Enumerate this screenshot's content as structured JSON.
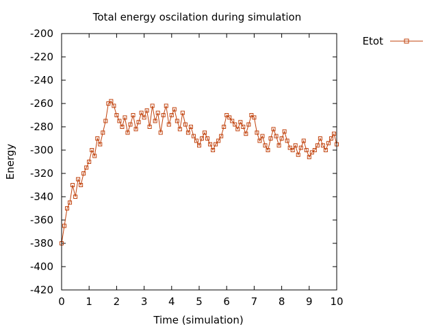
{
  "chart_data": {
    "type": "line",
    "title": "Total energy oscilation during simulation",
    "xlabel": "Time (simulation)",
    "ylabel": "Energy",
    "xlim": [
      0,
      10
    ],
    "ylim": [
      -420,
      -200
    ],
    "xticks": [
      0,
      1,
      2,
      3,
      4,
      5,
      6,
      7,
      8,
      9,
      10
    ],
    "yticks": [
      -420,
      -400,
      -380,
      -360,
      -340,
      -320,
      -300,
      -280,
      -260,
      -240,
      -220,
      -200
    ],
    "legend_position": "top-right-outside",
    "grid": false,
    "series": [
      {
        "name": "Etot",
        "color": "#c0400a",
        "marker": "square",
        "x": [
          0.0,
          0.1,
          0.2,
          0.3,
          0.4,
          0.5,
          0.6,
          0.7,
          0.8,
          0.9,
          1.0,
          1.1,
          1.2,
          1.3,
          1.4,
          1.5,
          1.6,
          1.7,
          1.8,
          1.9,
          2.0,
          2.1,
          2.2,
          2.3,
          2.4,
          2.5,
          2.6,
          2.7,
          2.8,
          2.9,
          3.0,
          3.1,
          3.2,
          3.3,
          3.4,
          3.5,
          3.6,
          3.7,
          3.8,
          3.9,
          4.0,
          4.1,
          4.2,
          4.3,
          4.4,
          4.5,
          4.6,
          4.7,
          4.8,
          4.9,
          5.0,
          5.1,
          5.2,
          5.3,
          5.4,
          5.5,
          5.6,
          5.7,
          5.8,
          5.9,
          6.0,
          6.1,
          6.2,
          6.3,
          6.4,
          6.5,
          6.6,
          6.7,
          6.8,
          6.9,
          7.0,
          7.1,
          7.2,
          7.3,
          7.4,
          7.5,
          7.6,
          7.7,
          7.8,
          7.9,
          8.0,
          8.1,
          8.2,
          8.3,
          8.4,
          8.5,
          8.6,
          8.7,
          8.8,
          8.9,
          9.0,
          9.1,
          9.2,
          9.3,
          9.4,
          9.5,
          9.6,
          9.7,
          9.8,
          9.9,
          10.0
        ],
        "values": [
          -380,
          -365,
          -350,
          -345,
          -330,
          -340,
          -325,
          -330,
          -320,
          -315,
          -310,
          -300,
          -305,
          -290,
          -295,
          -285,
          -275,
          -260,
          -258,
          -262,
          -270,
          -275,
          -280,
          -272,
          -285,
          -278,
          -270,
          -282,
          -276,
          -268,
          -272,
          -266,
          -280,
          -262,
          -275,
          -268,
          -285,
          -270,
          -262,
          -278,
          -270,
          -265,
          -275,
          -282,
          -268,
          -278,
          -285,
          -280,
          -288,
          -292,
          -296,
          -290,
          -285,
          -290,
          -295,
          -300,
          -295,
          -292,
          -288,
          -280,
          -270,
          -272,
          -275,
          -278,
          -282,
          -276,
          -280,
          -286,
          -278,
          -270,
          -272,
          -285,
          -292,
          -288,
          -296,
          -300,
          -290,
          -282,
          -288,
          -296,
          -290,
          -284,
          -292,
          -298,
          -300,
          -296,
          -304,
          -298,
          -292,
          -300,
          -306,
          -302,
          -300,
          -296,
          -290,
          -296,
          -300,
          -294,
          -290,
          -286,
          -295
        ]
      }
    ]
  }
}
